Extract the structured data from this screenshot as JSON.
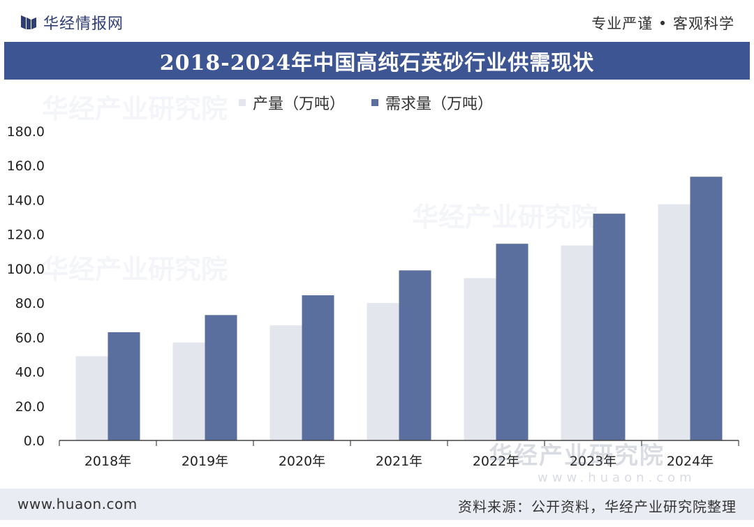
{
  "header": {
    "brand_name": "华经情报网",
    "tagline": "专业严谨 • 客观科学"
  },
  "colors": {
    "title_band": "#3e5593",
    "production": "#e3e6ed",
    "demand": "#5b6f9e",
    "footer_band": "#e9ecf3"
  },
  "chart_data": {
    "type": "bar",
    "title": "2018-2024年中国高纯石英砂行业供需现状",
    "categories": [
      "2018年",
      "2019年",
      "2020年",
      "2021年",
      "2022年",
      "2023年",
      "2024年"
    ],
    "series": [
      {
        "name": "产量（万吨）",
        "color": "#e3e6ed",
        "values": [
          49.0,
          57.0,
          67.0,
          80.0,
          94.5,
          113.5,
          137.5
        ]
      },
      {
        "name": "需求量（万吨）",
        "color": "#5b6f9e",
        "values": [
          63.0,
          73.0,
          84.5,
          99.0,
          114.5,
          132.0,
          153.5
        ]
      }
    ],
    "ylim": [
      0,
      180
    ],
    "yticks": [
      "0.0",
      "20.0",
      "40.0",
      "60.0",
      "80.0",
      "100.0",
      "120.0",
      "140.0",
      "160.0",
      "180.0"
    ],
    "grid": false,
    "legend_position": "top"
  },
  "watermark": {
    "text": "华经产业研究院",
    "url": "www.huaon.com"
  },
  "footer": {
    "url": "www.huaon.com",
    "source": "资料来源：公开资料，华经产业研究院整理"
  }
}
